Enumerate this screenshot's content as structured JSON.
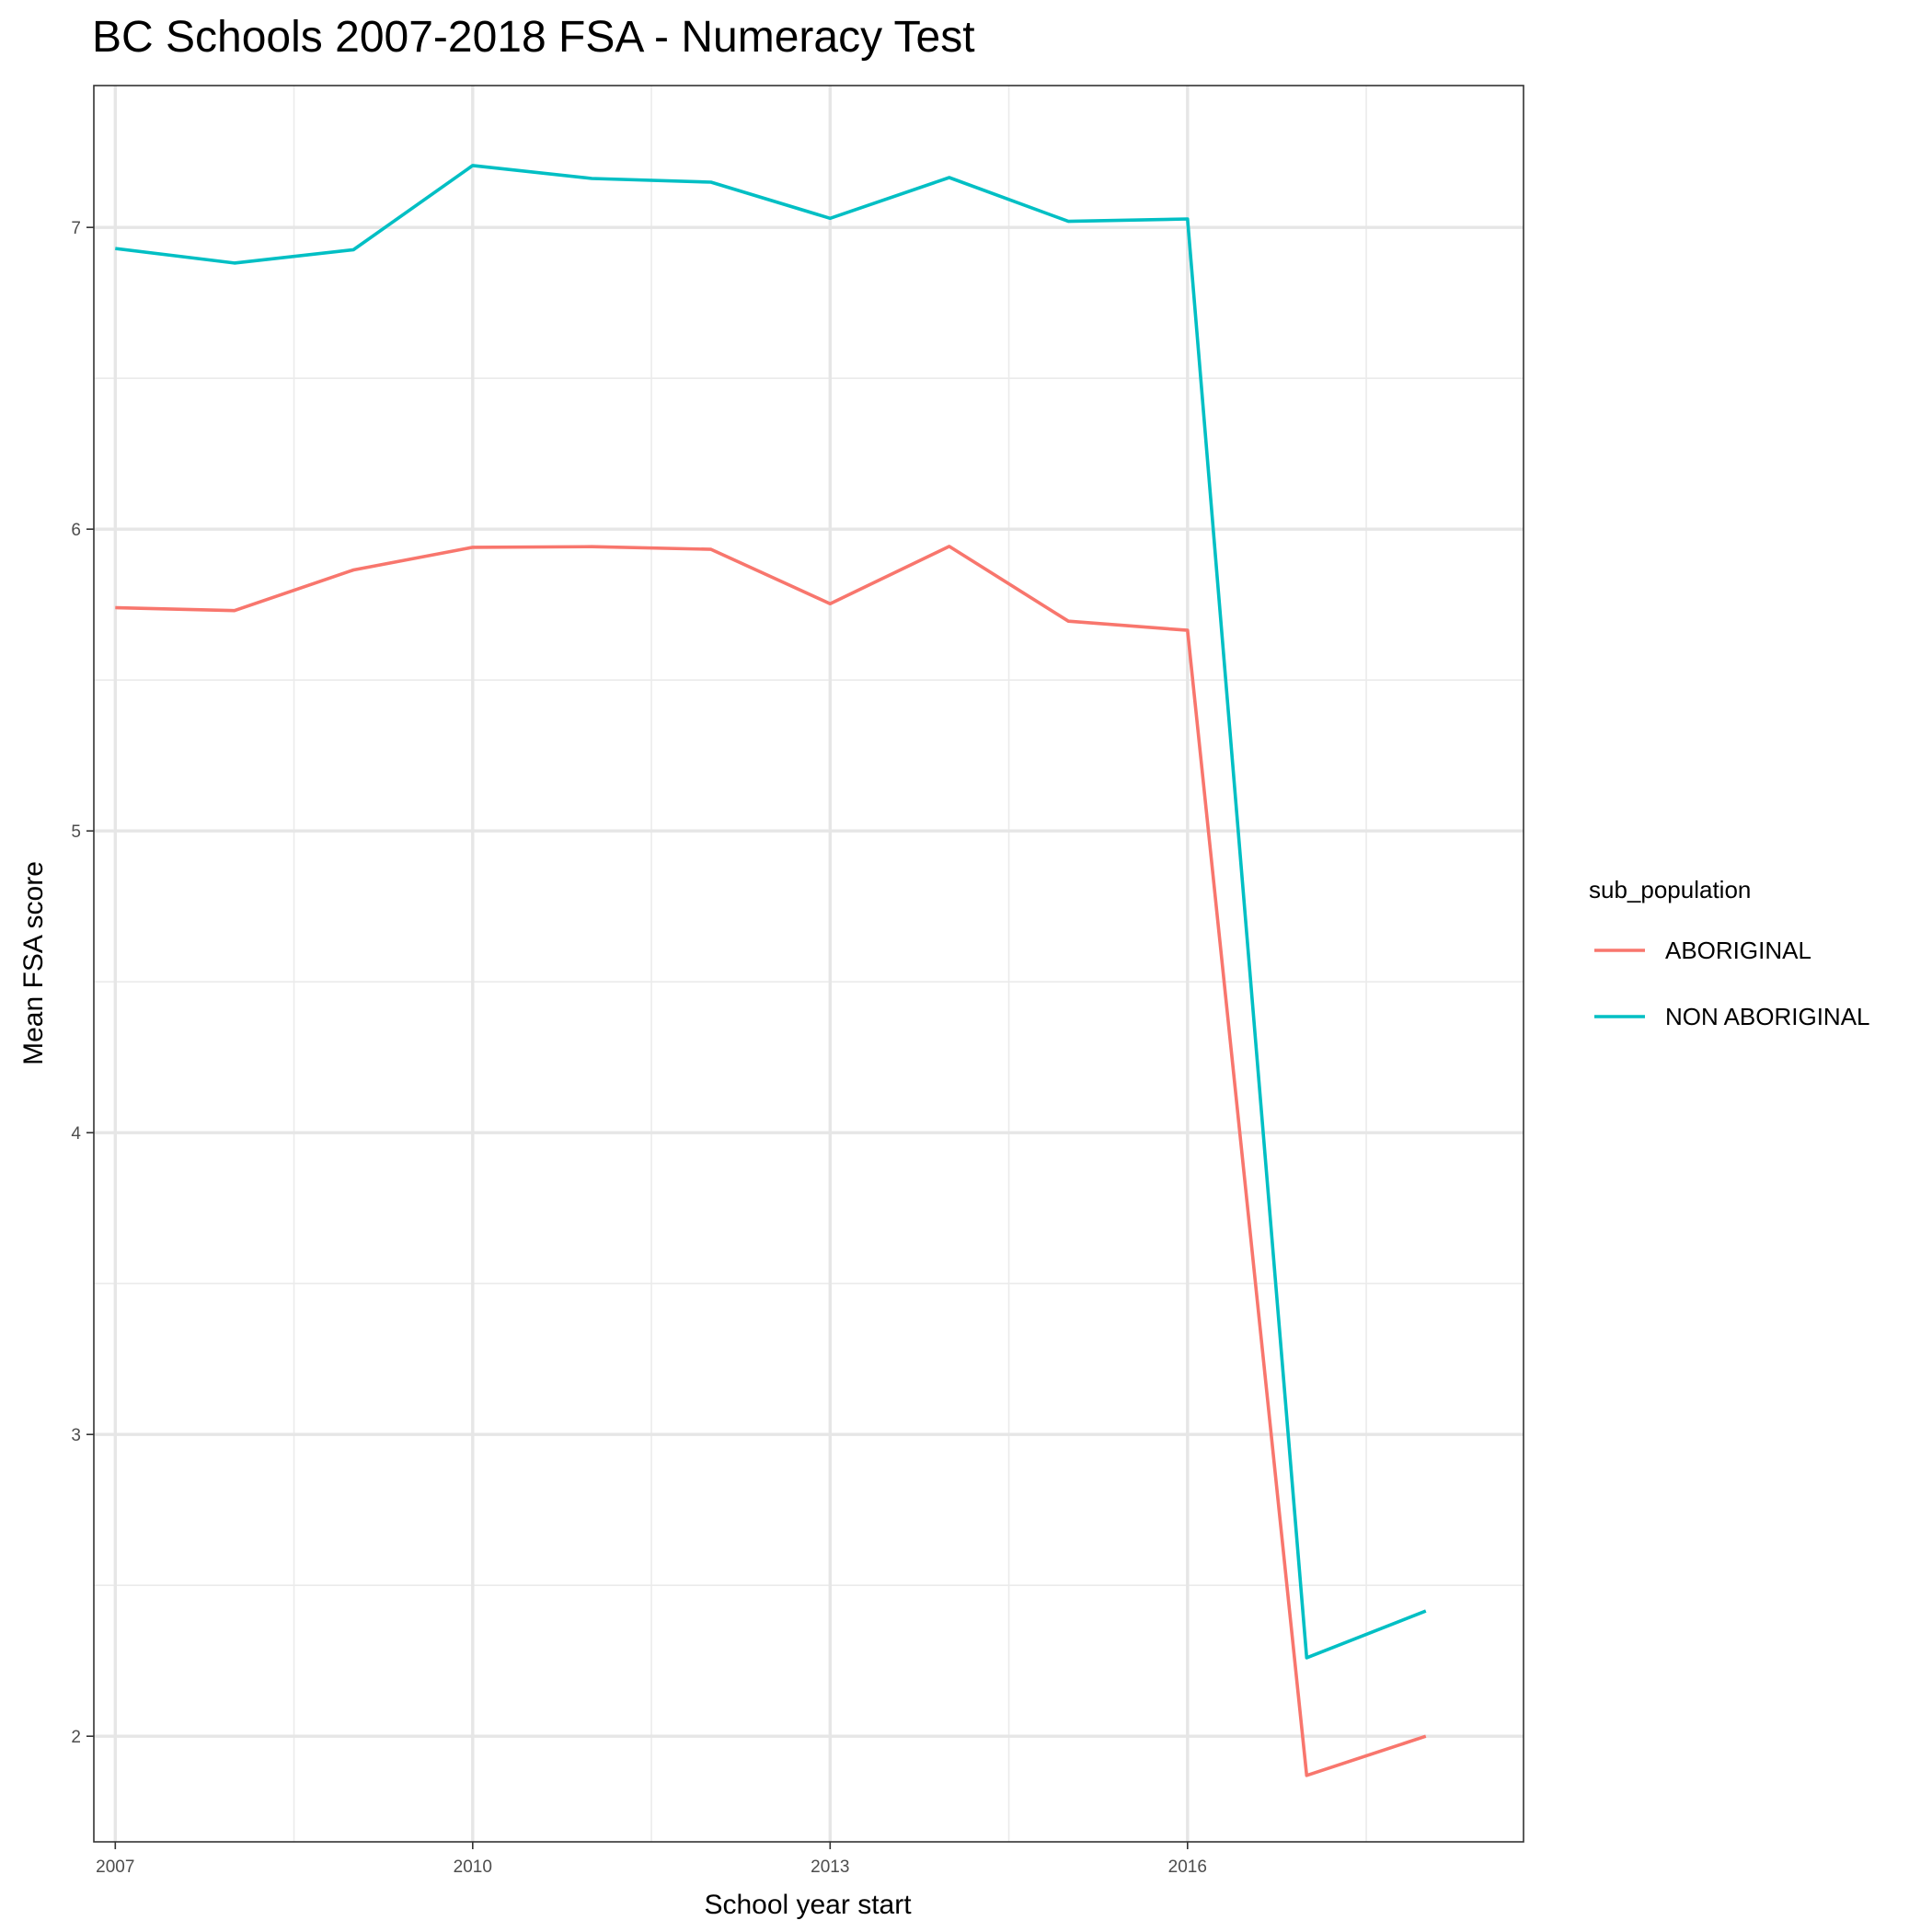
{
  "chart_data": {
    "type": "line",
    "title": "BC Schools 2007-2018 FSA - Numeracy Test",
    "xlabel": "School year start",
    "ylabel": "Mean FSA score",
    "x": [
      2007,
      2008,
      2009,
      2010,
      2011,
      2012,
      2013,
      2014,
      2015,
      2016,
      2017,
      2018
    ],
    "xlim": [
      2006.82,
      2018.82
    ],
    "ylim": [
      1.65,
      7.47
    ],
    "x_ticks": [
      2007,
      2010,
      2013,
      2016
    ],
    "x_tick_labels": [
      "2007",
      "2010",
      "2013",
      "2016"
    ],
    "y_ticks": [
      2,
      3,
      4,
      5,
      6,
      7
    ],
    "y_tick_labels": [
      "2",
      "3",
      "4",
      "5",
      "6",
      "7"
    ],
    "grid": true,
    "legend": {
      "title": "sub_population",
      "position": "right"
    },
    "series": [
      {
        "name": "ABORIGINAL",
        "color": "#F8766D",
        "values": [
          5.74,
          5.73,
          5.865,
          5.94,
          5.942,
          5.933,
          5.753,
          5.943,
          5.695,
          5.665,
          1.87,
          2.0
        ]
      },
      {
        "name": "NON ABORIGINAL",
        "color": "#00BFC4",
        "values": [
          6.93,
          6.882,
          6.926,
          7.205,
          7.162,
          7.15,
          7.03,
          7.165,
          7.02,
          7.028,
          2.26,
          2.415
        ]
      }
    ]
  }
}
